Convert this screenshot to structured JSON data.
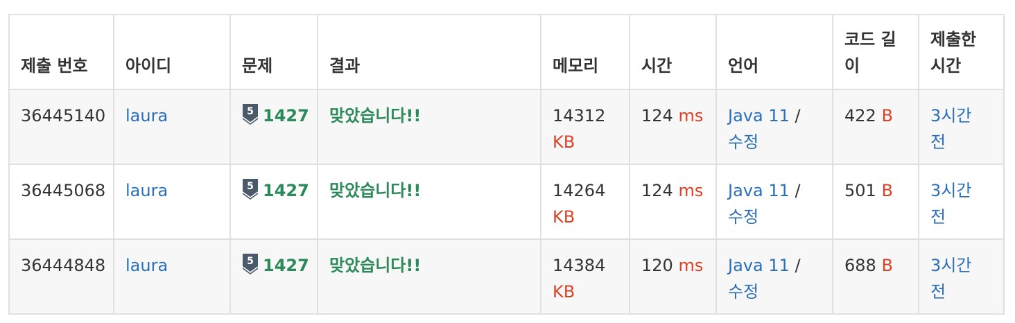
{
  "headers": {
    "submission_id": "제출 번호",
    "user_id": "아이디",
    "problem": "문제",
    "result": "결과",
    "memory": "메모리",
    "time": "시간",
    "language": "언어",
    "code_length": "코드 길이",
    "submitted_at": "제출한 시간"
  },
  "rows": [
    {
      "submission_id": "36445140",
      "user_id": "laura",
      "tier": "5",
      "problem": "1427",
      "result": "맞았습니다!!",
      "memory": "14312",
      "memory_unit": "KB",
      "time": "124",
      "time_unit": "ms",
      "language": "Java 11",
      "separator": "/",
      "edit": "수정",
      "code_length": "422",
      "code_unit": "B",
      "submitted_at": "3시간 전"
    },
    {
      "submission_id": "36445068",
      "user_id": "laura",
      "tier": "5",
      "problem": "1427",
      "result": "맞았습니다!!",
      "memory": "14264",
      "memory_unit": "KB",
      "time": "124",
      "time_unit": "ms",
      "language": "Java 11",
      "separator": "/",
      "edit": "수정",
      "code_length": "501",
      "code_unit": "B",
      "submitted_at": "3시간 전"
    },
    {
      "submission_id": "36444848",
      "user_id": "laura",
      "tier": "5",
      "problem": "1427",
      "result": "맞았습니다!!",
      "memory": "14384",
      "memory_unit": "KB",
      "time": "120",
      "time_unit": "ms",
      "language": "Java 11",
      "separator": "/",
      "edit": "수정",
      "code_length": "688",
      "code_unit": "B",
      "submitted_at": "3시간 전"
    }
  ],
  "colors": {
    "link": "#2a6fba",
    "accepted": "#2c8a5a",
    "unit": "#dd4124",
    "tier_badge": "#4a5a6a"
  },
  "icons": {
    "tier": "bronze-tier-badge-icon"
  }
}
